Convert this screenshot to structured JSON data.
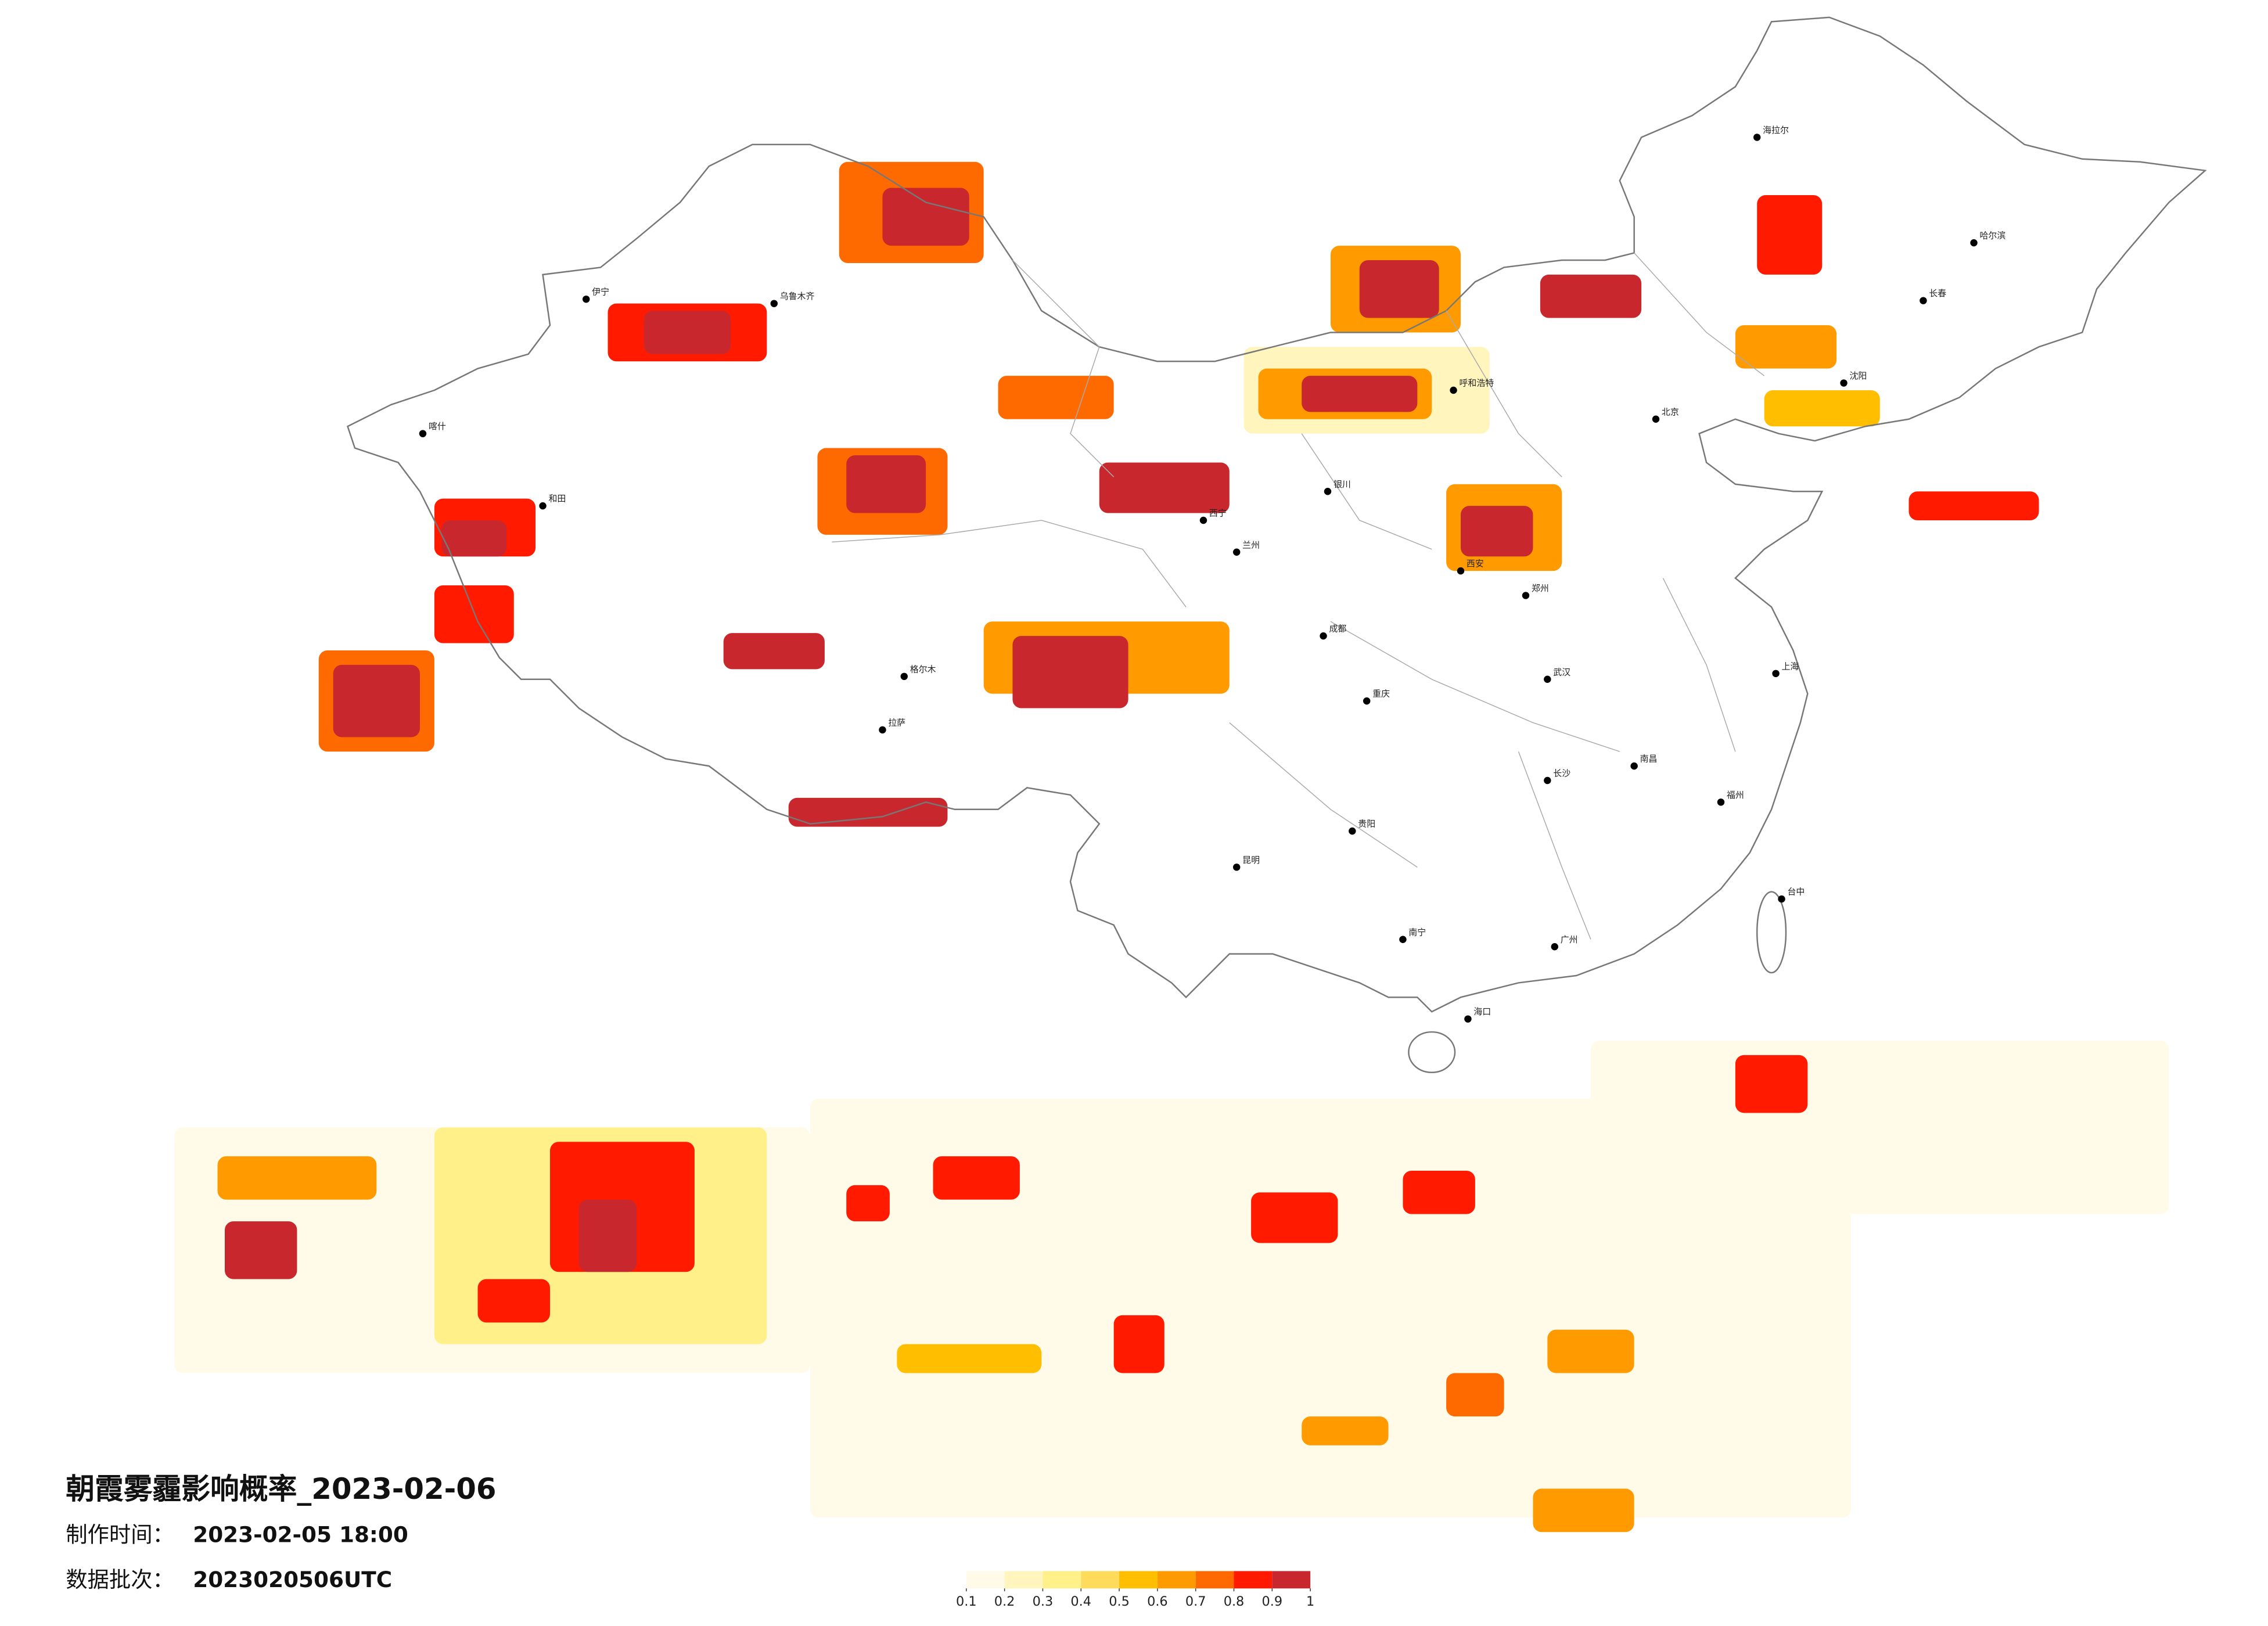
{
  "title": "朝霞雾霾影响概率_2023-02-06",
  "made_label": "制作时间：",
  "made_time": "2023-02-05 18:00",
  "batch_label": "数据批次：",
  "batch": "2023020506UTC",
  "legend": {
    "ticks": [
      0.1,
      0.2,
      0.3,
      0.4,
      0.5,
      0.6,
      0.7,
      0.8,
      0.9,
      1
    ],
    "colors": [
      "#fffbe8",
      "#fff5bd",
      "#fff08a",
      "#ffdb5c",
      "#ffbf00",
      "#ff9a00",
      "#ff6a00",
      "#ff1a00",
      "#c8282d"
    ]
  },
  "cities": [
    "北京",
    "上海",
    "广州",
    "成都",
    "重庆",
    "西安",
    "武汉",
    "哈尔滨",
    "乌鲁木齐",
    "拉萨",
    "兰州",
    "呼和浩特",
    "昆明",
    "南宁",
    "海口",
    "台中",
    "格尔木",
    "和田",
    "喀什",
    "伊宁",
    "海拉尔",
    "长春",
    "沈阳",
    "银川",
    "西宁",
    "郑州",
    "长沙",
    "福州",
    "南昌",
    "贵阳"
  ]
}
